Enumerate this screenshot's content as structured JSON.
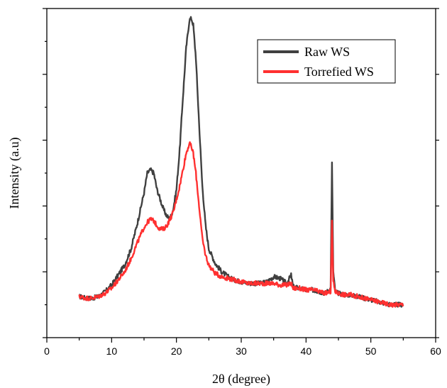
{
  "chart_data": {
    "type": "line",
    "title": "",
    "xlabel": "2θ (degree)",
    "ylabel": "Intensity (a.u)",
    "xlim": [
      0,
      60
    ],
    "ylim": [
      0,
      100
    ],
    "xticks": [
      0,
      10,
      20,
      30,
      40,
      50,
      60
    ],
    "y_tick_labels_shown": false,
    "grid": false,
    "legend": {
      "position": "top-right",
      "box": true
    },
    "series": [
      {
        "name": "Raw WS",
        "color": "#404040",
        "x": [
          5,
          6,
          7,
          8,
          9,
          10,
          11,
          12,
          13,
          14,
          15,
          15.5,
          16,
          16.5,
          17,
          17.5,
          18,
          18.5,
          19,
          19.5,
          20,
          20.5,
          21,
          21.5,
          22,
          22.3,
          22.6,
          23,
          23.5,
          24,
          24.5,
          25,
          26,
          27,
          28,
          29,
          30,
          31,
          32,
          33,
          34,
          35,
          36,
          37,
          37.7,
          38,
          39,
          40,
          41,
          42,
          43,
          43.8,
          44,
          44.2,
          44.5,
          45,
          46,
          47,
          48,
          49,
          50,
          51,
          52,
          53,
          54,
          55
        ],
        "y": [
          12.5,
          12,
          12,
          12.5,
          14,
          16,
          19,
          22,
          27,
          35,
          44,
          50,
          51,
          50,
          45,
          42,
          39,
          37,
          36,
          39,
          45,
          57,
          73,
          88,
          96.5,
          97,
          95,
          85,
          65,
          46,
          34,
          27,
          22.5,
          20,
          18.5,
          17.5,
          17,
          16.5,
          16.5,
          16.5,
          17,
          18.5,
          18,
          16.5,
          19,
          15.5,
          15,
          14.5,
          14.5,
          14,
          13.5,
          15,
          53,
          20,
          14,
          13.5,
          13,
          13,
          12.5,
          12,
          11.5,
          11,
          10.5,
          10,
          10,
          10
        ]
      },
      {
        "name": "Torrefied WS",
        "color": "#ff3030",
        "x": [
          5,
          6,
          7,
          8,
          9,
          10,
          11,
          12,
          13,
          14,
          15,
          15.5,
          16,
          16.5,
          17,
          17.5,
          18,
          18.5,
          19,
          19.5,
          20,
          20.5,
          21,
          21.5,
          22,
          22.3,
          22.6,
          23,
          23.5,
          24,
          24.5,
          25,
          26,
          27,
          28,
          29,
          30,
          31,
          32,
          33,
          34,
          35,
          36,
          37,
          37.7,
          38,
          39,
          40,
          41,
          42,
          43,
          43.8,
          44,
          44.2,
          44.5,
          45,
          46,
          47,
          48,
          49,
          50,
          51,
          52,
          53,
          54,
          55
        ],
        "y": [
          12.5,
          12,
          12,
          12.5,
          13.5,
          15,
          17.5,
          20,
          24,
          29,
          33.5,
          35,
          36,
          35.5,
          34,
          33,
          33,
          34,
          36,
          38,
          42,
          46,
          51,
          56,
          59,
          58,
          56,
          50,
          40,
          30,
          25,
          22,
          19.5,
          18.5,
          18,
          17.5,
          17,
          16.5,
          16.5,
          16.5,
          16.5,
          16.5,
          16,
          16,
          16.5,
          15,
          15,
          14.5,
          14.5,
          14,
          13.5,
          14,
          35,
          17,
          14,
          13.5,
          13,
          13,
          12.5,
          12,
          11.5,
          11,
          10.5,
          10,
          10,
          10
        ]
      }
    ]
  }
}
